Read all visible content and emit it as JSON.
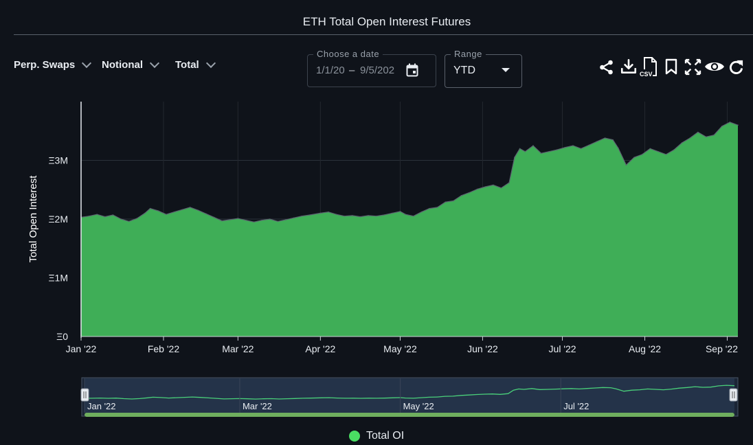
{
  "title": "ETH Total Open Interest Futures",
  "selectors": [
    {
      "label": "Perp. Swaps"
    },
    {
      "label": "Notional"
    },
    {
      "label": "Total"
    }
  ],
  "date_picker": {
    "label": "Choose a date",
    "start": "1/1/20",
    "separator": "–",
    "end": "9/5/202"
  },
  "range": {
    "label": "Range",
    "value": "YTD"
  },
  "toolbar_icons": [
    "share-icon",
    "download-icon",
    "csv-file-icon",
    "bookmark-icon",
    "fullscreen-icon",
    "eye-icon",
    "refresh-icon"
  ],
  "toolbar_csv_label": "CSV",
  "colors": {
    "background": "#0f131a",
    "series_fill": "#3fae57",
    "series_line": "#5c6470",
    "legend_dot": "#4ade63",
    "navigator_line": "#4ad17a"
  },
  "chart_data": {
    "type": "area",
    "ylabel": "Total Open Interest",
    "ylim": [
      0,
      4000000
    ],
    "yticks": [
      {
        "value": 0,
        "label": "Ξ0"
      },
      {
        "value": 1000000,
        "label": "Ξ1M"
      },
      {
        "value": 2000000,
        "label": "Ξ2M"
      },
      {
        "value": 3000000,
        "label": "Ξ3M"
      }
    ],
    "xlim": [
      "2022-01-01",
      "2022-09-05"
    ],
    "xticks": [
      {
        "date": "2022-01-01",
        "label": "Jan '22"
      },
      {
        "date": "2022-02-01",
        "label": "Feb '22"
      },
      {
        "date": "2022-03-01",
        "label": "Mar '22"
      },
      {
        "date": "2022-04-01",
        "label": "Apr '22"
      },
      {
        "date": "2022-05-01",
        "label": "May '22"
      },
      {
        "date": "2022-06-01",
        "label": "Jun '22"
      },
      {
        "date": "2022-07-01",
        "label": "Jul '22"
      },
      {
        "date": "2022-08-01",
        "label": "Aug '22"
      },
      {
        "date": "2022-09-01",
        "label": "Sep '22"
      }
    ],
    "grid": true,
    "legend_position": "bottom-center",
    "series": [
      {
        "name": "Total OI",
        "points": [
          [
            "2022-01-01",
            2030000
          ],
          [
            "2022-01-04",
            2050000
          ],
          [
            "2022-01-07",
            2080000
          ],
          [
            "2022-01-10",
            2040000
          ],
          [
            "2022-01-13",
            2070000
          ],
          [
            "2022-01-16",
            2000000
          ],
          [
            "2022-01-19",
            1960000
          ],
          [
            "2022-01-22",
            2010000
          ],
          [
            "2022-01-25",
            2100000
          ],
          [
            "2022-01-27",
            2180000
          ],
          [
            "2022-01-30",
            2140000
          ],
          [
            "2022-02-02",
            2080000
          ],
          [
            "2022-02-05",
            2120000
          ],
          [
            "2022-02-08",
            2160000
          ],
          [
            "2022-02-11",
            2200000
          ],
          [
            "2022-02-14",
            2150000
          ],
          [
            "2022-02-17",
            2090000
          ],
          [
            "2022-02-20",
            2030000
          ],
          [
            "2022-02-23",
            1970000
          ],
          [
            "2022-02-26",
            1990000
          ],
          [
            "2022-03-01",
            2010000
          ],
          [
            "2022-03-04",
            1980000
          ],
          [
            "2022-03-07",
            1950000
          ],
          [
            "2022-03-10",
            1980000
          ],
          [
            "2022-03-13",
            2000000
          ],
          [
            "2022-03-16",
            1960000
          ],
          [
            "2022-03-19",
            1990000
          ],
          [
            "2022-03-22",
            2020000
          ],
          [
            "2022-03-25",
            2050000
          ],
          [
            "2022-03-28",
            2070000
          ],
          [
            "2022-04-01",
            2100000
          ],
          [
            "2022-04-04",
            2120000
          ],
          [
            "2022-04-07",
            2080000
          ],
          [
            "2022-04-10",
            2050000
          ],
          [
            "2022-04-13",
            2060000
          ],
          [
            "2022-04-16",
            2040000
          ],
          [
            "2022-04-19",
            2060000
          ],
          [
            "2022-04-22",
            2050000
          ],
          [
            "2022-04-25",
            2070000
          ],
          [
            "2022-04-28",
            2100000
          ],
          [
            "2022-05-01",
            2130000
          ],
          [
            "2022-05-03",
            2080000
          ],
          [
            "2022-05-06",
            2050000
          ],
          [
            "2022-05-09",
            2120000
          ],
          [
            "2022-05-12",
            2180000
          ],
          [
            "2022-05-15",
            2200000
          ],
          [
            "2022-05-18",
            2290000
          ],
          [
            "2022-05-21",
            2310000
          ],
          [
            "2022-05-24",
            2400000
          ],
          [
            "2022-05-27",
            2450000
          ],
          [
            "2022-05-30",
            2510000
          ],
          [
            "2022-06-02",
            2550000
          ],
          [
            "2022-06-05",
            2580000
          ],
          [
            "2022-06-08",
            2530000
          ],
          [
            "2022-06-11",
            2620000
          ],
          [
            "2022-06-13",
            3050000
          ],
          [
            "2022-06-15",
            3200000
          ],
          [
            "2022-06-17",
            3150000
          ],
          [
            "2022-06-20",
            3250000
          ],
          [
            "2022-06-23",
            3120000
          ],
          [
            "2022-06-26",
            3150000
          ],
          [
            "2022-06-29",
            3180000
          ],
          [
            "2022-07-02",
            3220000
          ],
          [
            "2022-07-05",
            3250000
          ],
          [
            "2022-07-08",
            3200000
          ],
          [
            "2022-07-11",
            3260000
          ],
          [
            "2022-07-14",
            3320000
          ],
          [
            "2022-07-17",
            3380000
          ],
          [
            "2022-07-20",
            3350000
          ],
          [
            "2022-07-22",
            3210000
          ],
          [
            "2022-07-25",
            2920000
          ],
          [
            "2022-07-28",
            3050000
          ],
          [
            "2022-07-31",
            3100000
          ],
          [
            "2022-08-03",
            3200000
          ],
          [
            "2022-08-06",
            3150000
          ],
          [
            "2022-08-09",
            3100000
          ],
          [
            "2022-08-12",
            3180000
          ],
          [
            "2022-08-15",
            3300000
          ],
          [
            "2022-08-18",
            3380000
          ],
          [
            "2022-08-21",
            3480000
          ],
          [
            "2022-08-24",
            3400000
          ],
          [
            "2022-08-27",
            3430000
          ],
          [
            "2022-08-30",
            3580000
          ],
          [
            "2022-09-02",
            3650000
          ],
          [
            "2022-09-05",
            3600000
          ]
        ]
      }
    ]
  },
  "navigator": {
    "tick_labels": [
      "Jan '22",
      "Mar '22",
      "May '22",
      "Jul '22"
    ]
  }
}
